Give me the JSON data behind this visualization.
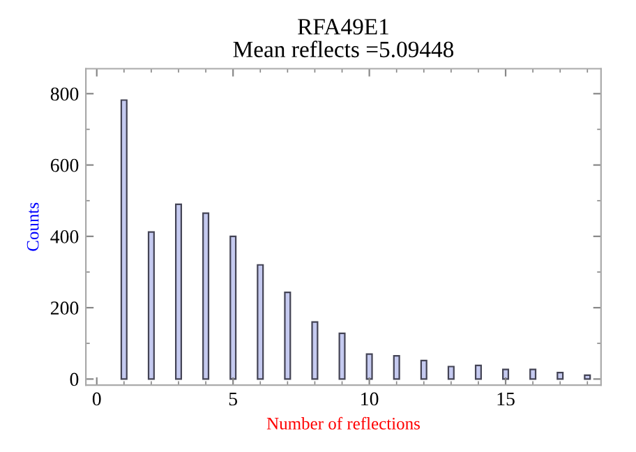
{
  "chart_data": {
    "type": "bar",
    "title": "RFA49E1\nMean reflects =5.09448",
    "xlabel": "Number of reflections",
    "ylabel": "Counts",
    "x": [
      1,
      2,
      3,
      4,
      5,
      6,
      7,
      8,
      9,
      10,
      11,
      12,
      13,
      14,
      15,
      16,
      17,
      18
    ],
    "values": [
      782,
      412,
      490,
      465,
      400,
      320,
      243,
      160,
      128,
      70,
      65,
      52,
      35,
      38,
      27,
      27,
      18,
      11
    ],
    "color": "#c5caf0",
    "xlim": [
      -0.4,
      18.5
    ],
    "ylim": [
      -17,
      870
    ],
    "xticks": [
      0,
      5,
      10,
      15
    ],
    "yticks": [
      0,
      200,
      400,
      600,
      800
    ],
    "grid": false
  }
}
